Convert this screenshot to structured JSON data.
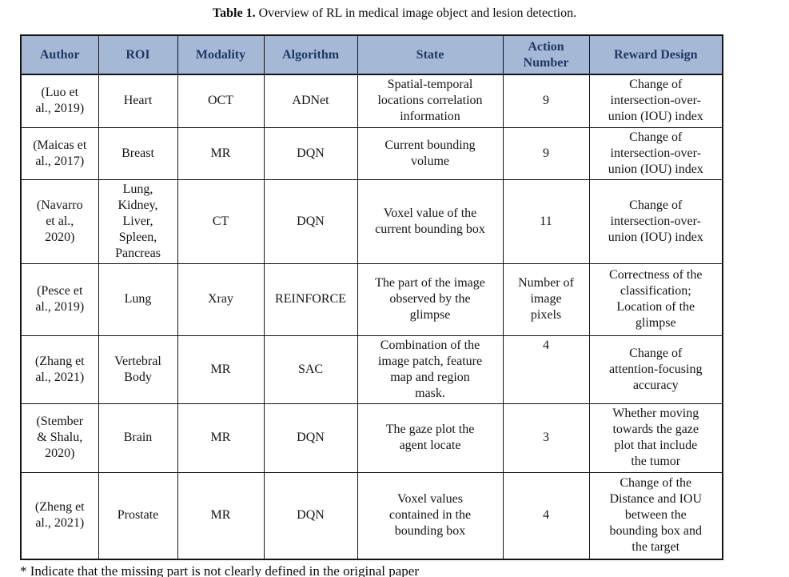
{
  "caption": {
    "label": "Table 1.",
    "text": " Overview of RL in medical image object and lesion detection."
  },
  "colors": {
    "header_bg": "#a5b9d6",
    "header_text": "#1f3864",
    "border": "#141414",
    "page_bg": "#ffffff"
  },
  "table": {
    "column_keys": [
      "author",
      "roi",
      "modality",
      "algorithm",
      "state",
      "action_number",
      "reward_design"
    ],
    "headers": [
      "Author",
      "ROI",
      "Modality",
      "Algorithm",
      "State",
      "Action\nNumber",
      "Reward Design"
    ],
    "rows": [
      {
        "author": "(Luo et\nal., 2019)",
        "roi": "Heart",
        "modality": "OCT",
        "algorithm": "ADNet",
        "state": "Spatial-temporal\nlocations correlation\ninformation",
        "action_number": "9",
        "reward_design": "Change of\nintersection-over-\nunion (IOU) index"
      },
      {
        "author": "(Maicas et\nal., 2017)",
        "roi": "Breast",
        "modality": "MR",
        "algorithm": "DQN",
        "state": "Current bounding\nvolume",
        "action_number": "9",
        "reward_design": "Change of\nintersection-over-\nunion (IOU) index"
      },
      {
        "author": "(Navarro\net al.,\n2020)",
        "roi": "Lung,\nKidney,\nLiver,\nSpleen,\nPancreas",
        "modality": "CT",
        "algorithm": "DQN",
        "state": "Voxel value of the\ncurrent bounding box",
        "action_number": "11",
        "reward_design": "Change of\nintersection-over-\nunion (IOU) index"
      },
      {
        "author": "(Pesce et\nal., 2019)",
        "roi": "Lung",
        "modality": "Xray",
        "algorithm": "REINFORCE",
        "state": "The part of the image\nobserved by the\nglimpse",
        "action_number": "Number of\nimage\npixels",
        "reward_design": "Correctness of the\nclassification;\nLocation of the\nglimpse"
      },
      {
        "author": "(Zhang et\nal., 2021)",
        "roi": "Vertebral\nBody",
        "modality": "MR",
        "algorithm": "SAC",
        "state": "Combination of the\nimage patch, feature\nmap and region\nmask.",
        "action_number": "4",
        "reward_design": "Change of\nattention-focusing\naccuracy",
        "cell_valign": {
          "action_number": "top"
        }
      },
      {
        "author": "(Stember\n& Shalu,\n2020)",
        "roi": "Brain",
        "modality": "MR",
        "algorithm": "DQN",
        "state": "The gaze plot the\nagent locate",
        "action_number": "3",
        "reward_design": "Whether moving\ntowards the gaze\nplot that include\nthe tumor"
      },
      {
        "author": "(Zheng et\nal., 2021)",
        "roi": "Prostate",
        "modality": "MR",
        "algorithm": "DQN",
        "state": "Voxel values\ncontained in the\nbounding box",
        "action_number": "4",
        "reward_design": "Change of the\nDistance and IOU\nbetween the\nbounding box and\nthe target"
      }
    ]
  },
  "footnote": "* Indicate that the missing part is not clearly defined in the original paper"
}
